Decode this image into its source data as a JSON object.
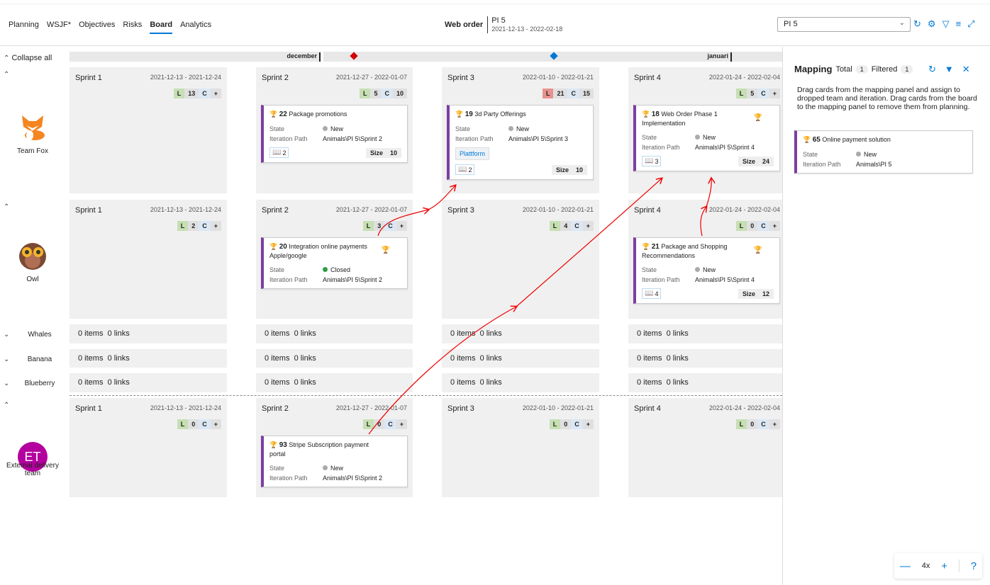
{
  "tabs": [
    {
      "label": "Planning"
    },
    {
      "label": "WSJF*"
    },
    {
      "label": "Objectives"
    },
    {
      "label": "Risks"
    },
    {
      "label": "Board",
      "active": true
    },
    {
      "label": "Analytics"
    }
  ],
  "context": {
    "name": "Web order",
    "pi": "PI 5",
    "dates": "2021-12-13 - 2022-02-18"
  },
  "pi_select": {
    "value": "PI 5"
  },
  "toolbar_icons": [
    "refresh-icon",
    "gear-icon",
    "filter-icon",
    "settings-sliders-icon",
    "expand-icon"
  ],
  "collapse_all": "Collapse all",
  "timeline": {
    "months": [
      "december",
      "januari"
    ],
    "milestone_colors": [
      "#d40000",
      "#0078d4"
    ]
  },
  "colors": {
    "accent": "#0078d4",
    "card_border": "#7b3fa0",
    "load_ok": "#c6dfb3",
    "load_over": "#e8938f"
  },
  "teams": [
    {
      "name": "Team Fox",
      "icon": "fox-avatar",
      "expanded": true,
      "sprints": [
        {
          "name": "Sprint 1",
          "dates": "2021-12-13 - 2021-12-24",
          "L": "13",
          "C": "+",
          "cards": []
        },
        {
          "name": "Sprint 2",
          "dates": "2021-12-27 - 2022-01-07",
          "L": "5",
          "C": "10",
          "cards": [
            {
              "id": "22",
              "title": "Package promotions",
              "state": "New",
              "path": "Animals\\PI 5\\Sprint 2",
              "stories": "2",
              "size": "10"
            }
          ]
        },
        {
          "name": "Sprint 3",
          "dates": "2022-01-10 - 2022-01-21",
          "L": "21",
          "over": true,
          "C": "15",
          "cards": [
            {
              "id": "19",
              "title": "3d Party Offerings",
              "state": "New",
              "path": "Animals\\PI 5\\Sprint 3",
              "tag": "Plattform",
              "stories": "2",
              "size": "10"
            }
          ]
        },
        {
          "name": "Sprint 4",
          "dates": "2022-01-24 - 2022-02-04",
          "L": "5",
          "C": "+",
          "cards": [
            {
              "id": "18",
              "title": "Web Order Phase 1 Implementation",
              "gold": true,
              "state": "New",
              "path": "Animals\\PI 5\\Sprint 4",
              "stories": "3",
              "size": "24"
            }
          ]
        }
      ]
    },
    {
      "name": "Owl",
      "icon": "owl-avatar",
      "expanded": true,
      "sprints": [
        {
          "name": "Sprint 1",
          "dates": "2021-12-13 - 2021-12-24",
          "L": "2",
          "C": "+",
          "cards": []
        },
        {
          "name": "Sprint 2",
          "dates": "2021-12-27 - 2022-01-07",
          "L": "3",
          "C": "+",
          "cards": [
            {
              "id": "20",
              "title": "Integration online payments Apple/google",
              "gold": true,
              "state": "Closed",
              "path": "Animals\\PI 5\\Sprint 2"
            }
          ]
        },
        {
          "name": "Sprint 3",
          "dates": "2022-01-10 - 2022-01-21",
          "L": "4",
          "C": "+",
          "cards": []
        },
        {
          "name": "Sprint 4",
          "dates": "2022-01-24 - 2022-02-04",
          "L": "0",
          "C": "+",
          "cards": [
            {
              "id": "21",
              "title": "Package and Shopping Recommendations",
              "gold": true,
              "state": "New",
              "path": "Animals\\PI 5\\Sprint 4",
              "stories": "4",
              "size": "12"
            }
          ]
        }
      ]
    },
    {
      "name": "Whales",
      "expanded": false,
      "summary": "0 items  0 links"
    },
    {
      "name": "Banana",
      "expanded": false,
      "summary": "0 items  0 links"
    },
    {
      "name": "Blueberry",
      "expanded": false,
      "summary": "0 items  0 links"
    },
    {
      "name": "External delivery team",
      "initials": "ET",
      "avatar_color": "#b4009e",
      "expanded": true,
      "sprints": [
        {
          "name": "Sprint 1",
          "dates": "2021-12-13 - 2021-12-24",
          "L": "0",
          "C": "+",
          "cards": []
        },
        {
          "name": "Sprint 2",
          "dates": "2021-12-27 - 2022-01-07",
          "L": "0",
          "C": "+",
          "cards": [
            {
              "id": "93",
              "title": "Stripe Subscription payment portal",
              "state": "New",
              "path": "Animals\\PI 5\\Sprint 2"
            }
          ]
        },
        {
          "name": "Sprint 3",
          "dates": "2022-01-10 - 2022-01-21",
          "L": "0",
          "C": "+",
          "cards": []
        },
        {
          "name": "Sprint 4",
          "dates": "2022-01-24 - 2022-02-04",
          "L": "0",
          "C": "+",
          "cards": []
        }
      ]
    }
  ],
  "labels": {
    "state": "State",
    "path": "Iteration Path",
    "size": "Size",
    "L": "L",
    "C": "C"
  },
  "mapping": {
    "title": "Mapping",
    "total_label": "Total",
    "total": "1",
    "filtered_label": "Filtered",
    "filtered": "1",
    "description": "Drag cards from the mapping panel and assign to dropped team and iteration. Drag cards from the board to the mapping panel to remove them from planning.",
    "card": {
      "id": "65",
      "title": "Online payment solution",
      "state": "New",
      "path": "Animals\\PI 5"
    }
  },
  "zoom": {
    "level": "4x",
    "help": "?"
  }
}
